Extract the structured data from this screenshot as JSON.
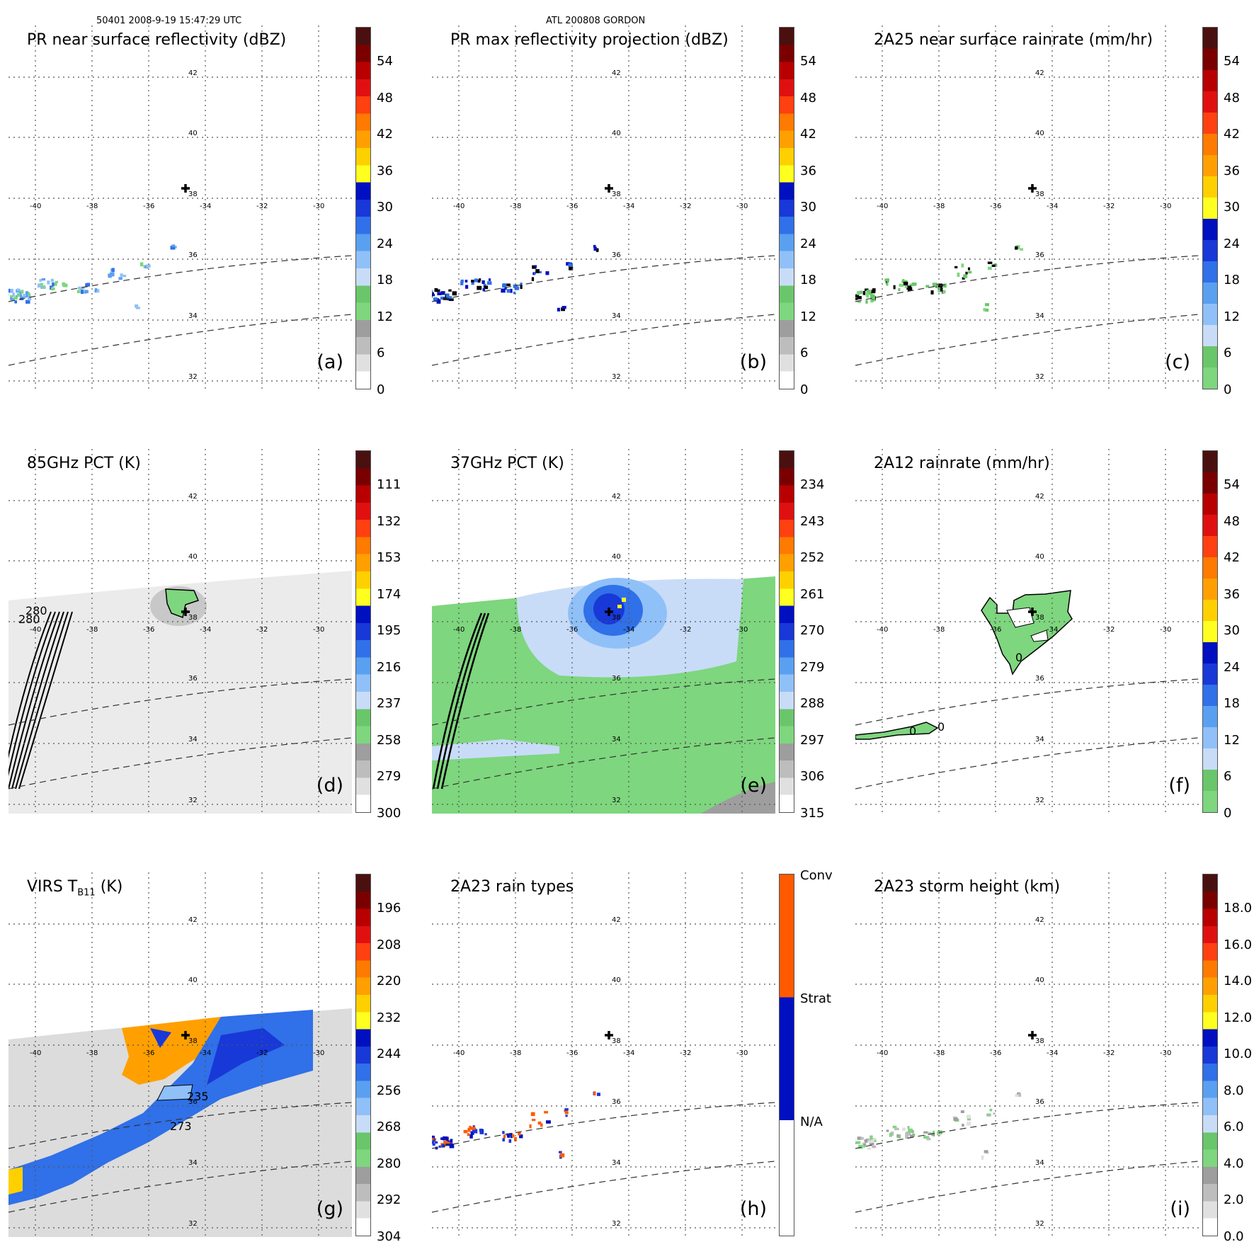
{
  "header": {
    "left": "50401 2008-9-19 15:47:29 UTC",
    "center": "ATL 200808 GORDON"
  },
  "lon_ticks": [
    "-40",
    "-38",
    "-36",
    "-34",
    "-32",
    "-30"
  ],
  "lat_ticks": [
    "42",
    "40",
    "38",
    "36",
    "34",
    "32"
  ],
  "panels": [
    {
      "id": "a",
      "title": "PR near surface reflectivity (dBZ)",
      "label": "(a)",
      "scheme": "refl",
      "ticks": [
        "54",
        "48",
        "42",
        "36",
        "30",
        "24",
        "18",
        "12",
        "6",
        "0"
      ]
    },
    {
      "id": "b",
      "title": "PR max reflectivity projection (dBZ)",
      "label": "(b)",
      "scheme": "refl",
      "ticks": [
        "54",
        "48",
        "42",
        "36",
        "30",
        "24",
        "18",
        "12",
        "6",
        "0"
      ]
    },
    {
      "id": "c",
      "title": "2A25 near surface rainrate (mm/hr)",
      "label": "(c)",
      "scheme": "rain",
      "ticks": [
        "54",
        "48",
        "42",
        "36",
        "30",
        "24",
        "18",
        "12",
        "6",
        "0"
      ]
    },
    {
      "id": "d",
      "title": "85GHz PCT (K)",
      "label": "(d)",
      "scheme": "refl",
      "ticks": [
        "111",
        "132",
        "153",
        "174",
        "195",
        "216",
        "237",
        "258",
        "279",
        "300"
      ]
    },
    {
      "id": "e",
      "title": "37GHz PCT (K)",
      "label": "(e)",
      "scheme": "refl",
      "ticks": [
        "234",
        "243",
        "252",
        "261",
        "270",
        "279",
        "288",
        "297",
        "306",
        "315"
      ]
    },
    {
      "id": "f",
      "title": "2A12 rainrate (mm/hr)",
      "label": "(f)",
      "scheme": "rain",
      "ticks": [
        "54",
        "48",
        "42",
        "36",
        "30",
        "24",
        "18",
        "12",
        "6",
        "0"
      ]
    },
    {
      "id": "g",
      "title": "VIRS T",
      "title_sub": "B11",
      "title_tail": " (K)",
      "label": "(g)",
      "scheme": "refl",
      "ticks": [
        "196",
        "208",
        "220",
        "232",
        "244",
        "256",
        "268",
        "280",
        "292",
        "304"
      ]
    },
    {
      "id": "h",
      "title": "2A23 rain types",
      "label": "(h)",
      "scheme": "types",
      "ticks": [
        "Conv",
        "Strat",
        "N/A"
      ]
    },
    {
      "id": "i",
      "title": "2A23 storm height (km)",
      "label": "(i)",
      "scheme": "refl",
      "ticks": [
        "18.0",
        "16.0",
        "14.0",
        "12.0",
        "10.0",
        "8.0",
        "6.0",
        "4.0",
        "2.0",
        "0.0"
      ]
    }
  ],
  "contours": {
    "d": [
      "280",
      "280"
    ],
    "f": [
      "0",
      "0",
      "0"
    ],
    "g": [
      "235",
      "273"
    ]
  },
  "colors": {
    "refl": [
      "#ffffff",
      "#e0e0e0",
      "#bdbdbd",
      "#9e9e9e",
      "#7ed67e",
      "#6ac66a",
      "#c8dcf8",
      "#90c0f8",
      "#5aa0f0",
      "#3070e8",
      "#1838d8",
      "#0010c0",
      "#ffff20",
      "#ffd000",
      "#ffa000",
      "#ff7a00",
      "#ff4010",
      "#e01010",
      "#b80000",
      "#7a0000",
      "#4a1010"
    ],
    "rain": [
      "#7ed67e",
      "#6ac66a",
      "#c8dcf8",
      "#90c0f8",
      "#5aa0f0",
      "#3070e8",
      "#1838d8",
      "#0010c0",
      "#ffff20",
      "#ffd000",
      "#ffa000",
      "#ff7a00",
      "#ff4010",
      "#e01010",
      "#b80000",
      "#7a0000",
      "#4a1010"
    ],
    "types": [
      "#ffffff",
      "#0010c0",
      "#ff5a00"
    ]
  }
}
